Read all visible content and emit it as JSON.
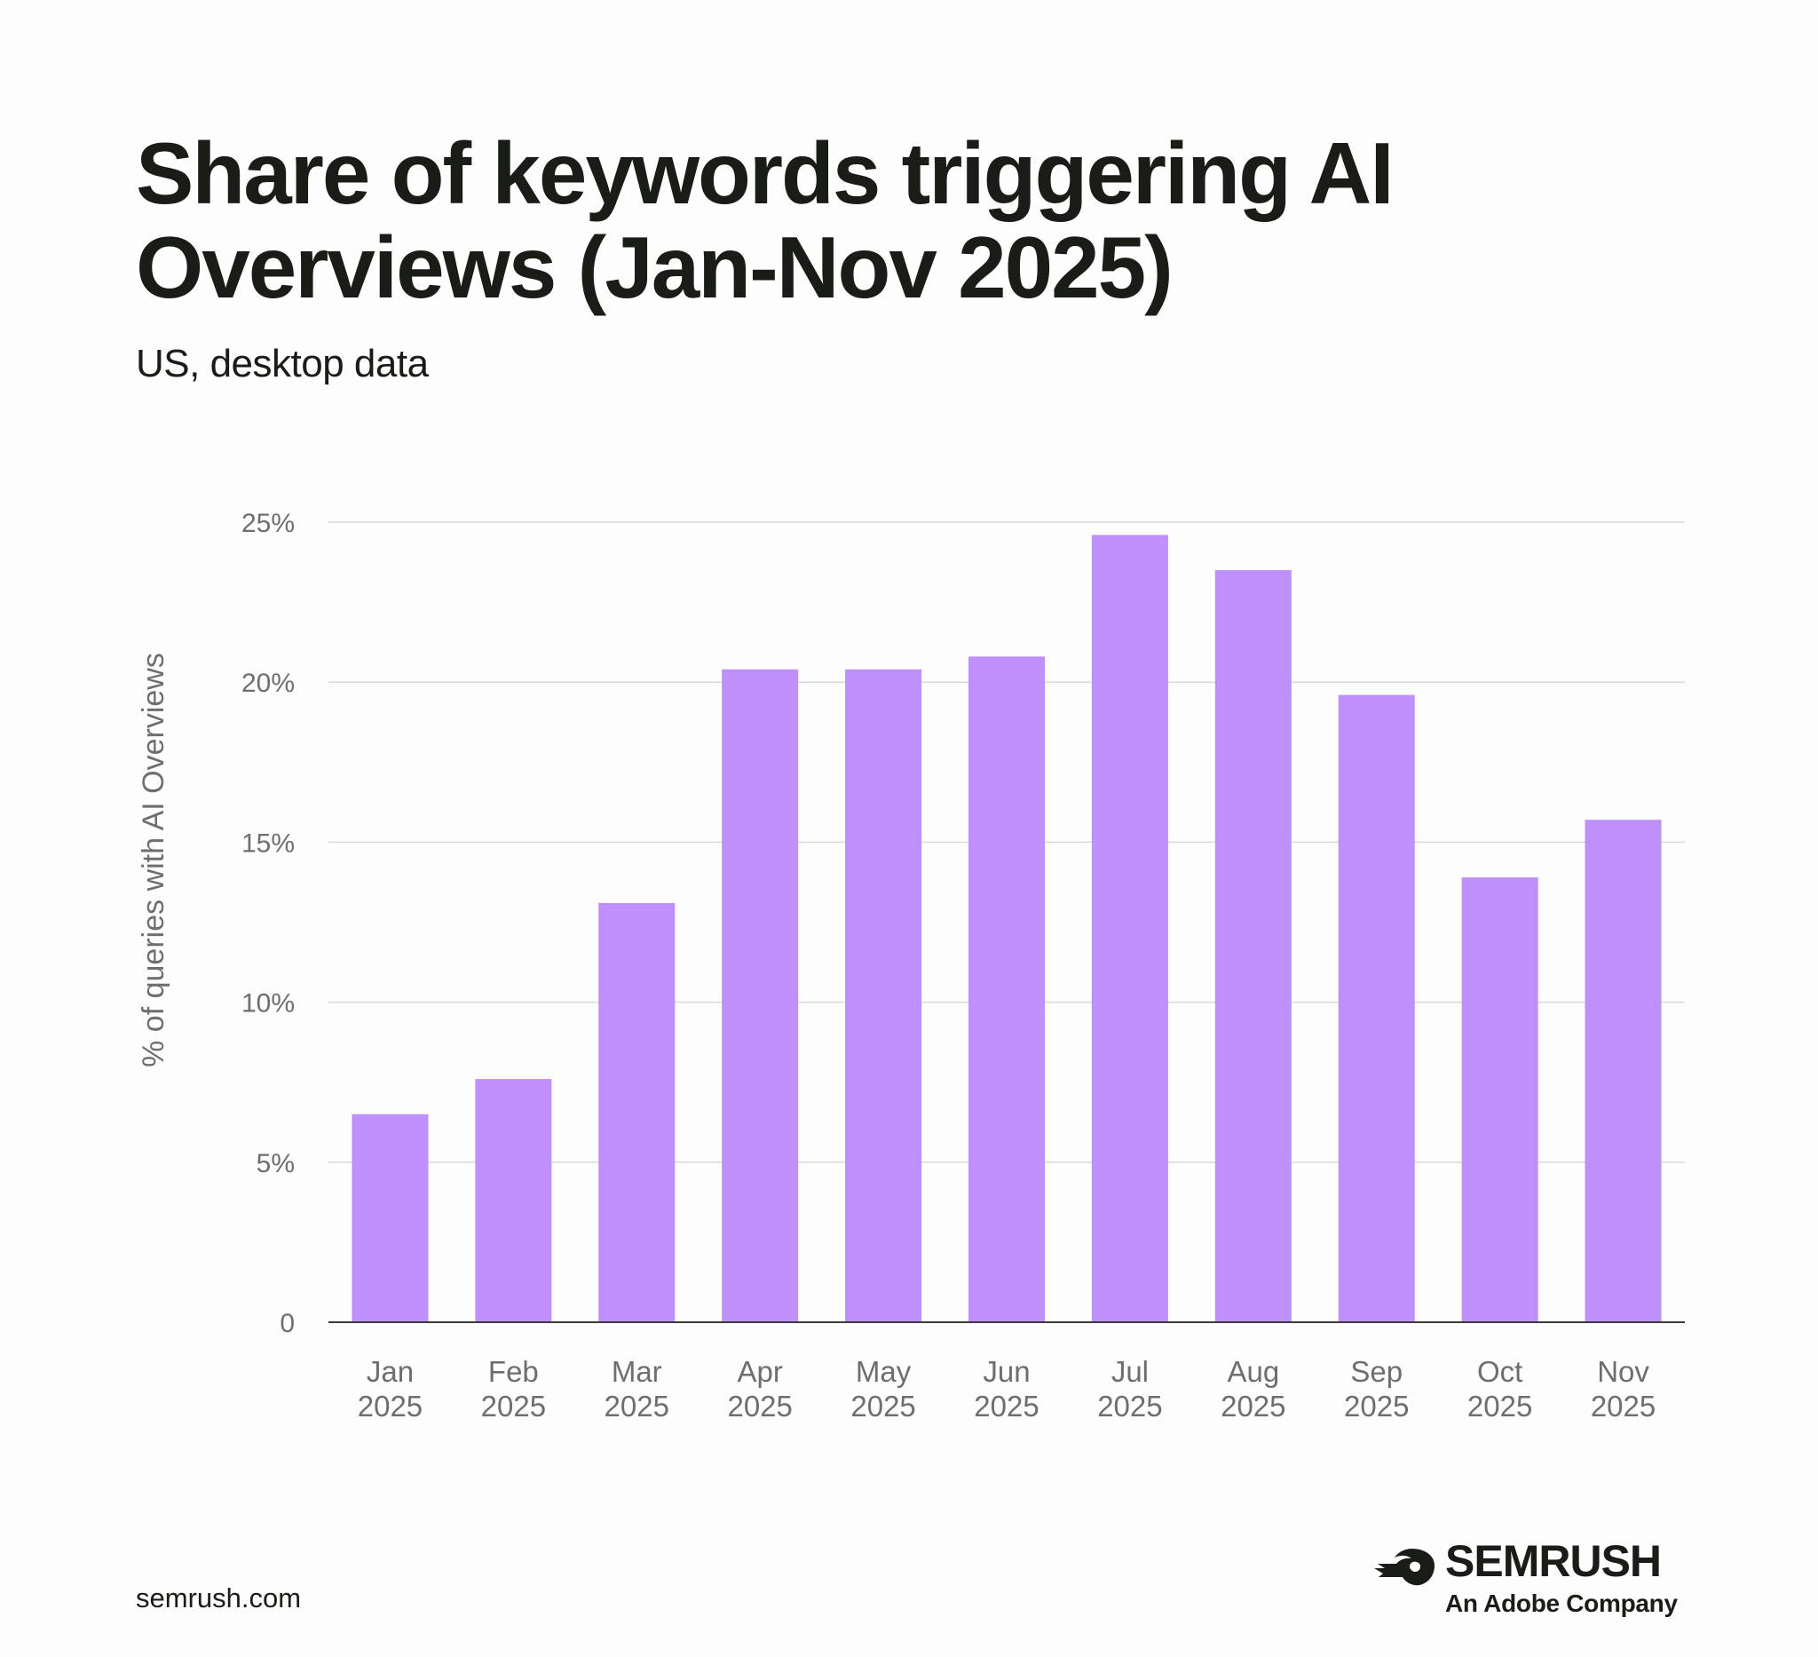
{
  "header": {
    "title": "Share of keywords triggering AI Overviews (Jan-Nov 2025)",
    "subtitle": "US, desktop data"
  },
  "chart_data": {
    "type": "bar",
    "title": "Share of keywords triggering AI Overviews (Jan-Nov 2025)",
    "subtitle": "US, desktop data",
    "ylabel": "% of queries with AI Overviews",
    "xlabel": "",
    "categories": [
      [
        "Jan",
        "2025"
      ],
      [
        "Feb",
        "2025"
      ],
      [
        "Mar",
        "2025"
      ],
      [
        "Apr",
        "2025"
      ],
      [
        "May",
        "2025"
      ],
      [
        "Jun",
        "2025"
      ],
      [
        "Jul",
        "2025"
      ],
      [
        "Aug",
        "2025"
      ],
      [
        "Sep",
        "2025"
      ],
      [
        "Oct",
        "2025"
      ],
      [
        "Nov",
        "2025"
      ]
    ],
    "values": [
      6.5,
      7.6,
      13.1,
      20.4,
      20.4,
      20.8,
      24.6,
      23.5,
      19.6,
      13.9,
      15.7
    ],
    "ylim": [
      0,
      25
    ],
    "yticks": [
      0,
      5,
      10,
      15,
      20,
      25
    ],
    "ytick_labels": [
      "0",
      "5%",
      "10%",
      "15%",
      "20%",
      "25%"
    ],
    "grid": true,
    "bar_color": "#bf8ffc",
    "grid_color": "#d9d9dc",
    "axis_color": "#3a3a3a"
  },
  "footer": {
    "url": "semrush.com",
    "brand_name": "SEMRUSH",
    "brand_tagline": "An Adobe Company",
    "logo_icon": "semrush-flame-icon"
  }
}
